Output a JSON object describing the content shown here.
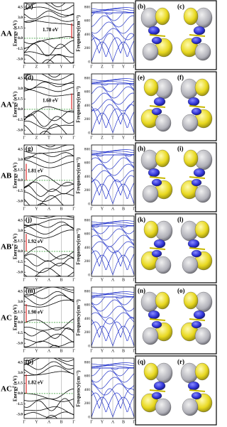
{
  "energy_axis": {
    "title": "Energy (eV)",
    "ticks": [
      "4.5",
      "3.0",
      "1.5",
      "0.0",
      "-1.5",
      "-3.0"
    ]
  },
  "frequency_axis": {
    "title": "Frequency(cm⁻¹)",
    "ticks": [
      "800",
      "600",
      "400",
      "200",
      "0"
    ]
  },
  "rows": [
    {
      "band_label": "(a)",
      "stacking": "AA",
      "gap": "1.78 eV",
      "kpath": [
        "Γ",
        "Z",
        "T",
        "Y",
        "Γ"
      ],
      "image_labels": [
        "(b)",
        "(c)"
      ]
    },
    {
      "band_label": "(d)",
      "stacking": "AA'",
      "gap": "1.60 eV",
      "kpath": [
        "Γ",
        "Z",
        "T",
        "Y",
        "Γ"
      ],
      "image_labels": [
        "(e)",
        "(f)"
      ]
    },
    {
      "band_label": "(g)",
      "stacking": "AB",
      "gap": "1.81 eV",
      "kpath": [
        "Γ",
        "Y",
        "A",
        "B",
        "Γ"
      ],
      "image_labels": [
        "(h)",
        "(i)"
      ]
    },
    {
      "band_label": "(j)",
      "stacking": "AB'",
      "gap": "1.92 eV",
      "kpath": [
        "Γ",
        "Y",
        "A",
        "B",
        "Γ"
      ],
      "image_labels": [
        "(k)",
        "(l)"
      ]
    },
    {
      "band_label": "(m)",
      "stacking": "AC",
      "gap": "1.90 eV",
      "kpath": [
        "Γ",
        "Y",
        "A",
        "B",
        "Γ"
      ],
      "image_labels": [
        "(n)",
        "(o)"
      ]
    },
    {
      "band_label": "(p)",
      "stacking": "AC'",
      "gap": "1.82 eV",
      "kpath": [
        "Γ",
        "Y",
        "A",
        "B",
        "Γ"
      ],
      "image_labels": [
        "(q)",
        "(r)"
      ]
    }
  ]
}
